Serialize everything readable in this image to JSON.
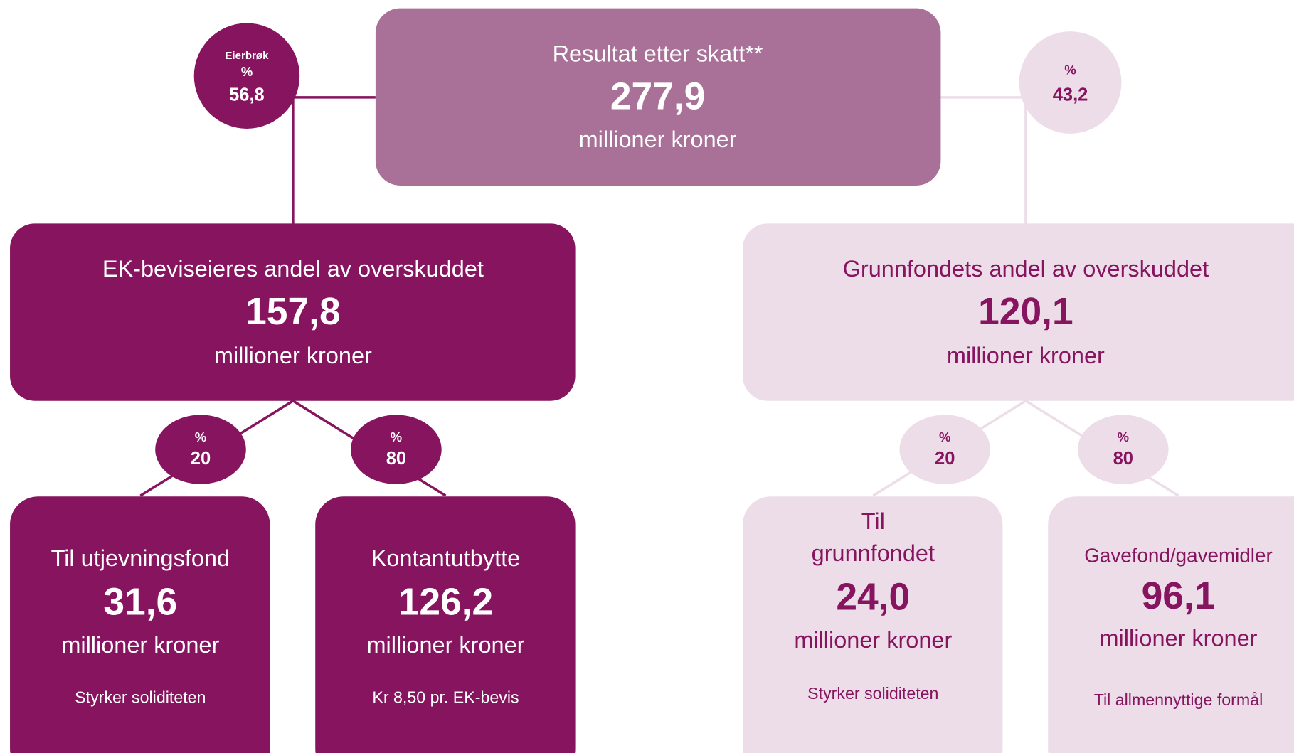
{
  "top": {
    "title": "Resultat etter skatt**",
    "value": "277,9",
    "unit": "millioner kroner"
  },
  "owner_share": {
    "label": "Eierbrøk",
    "symbol": "%",
    "value": "56,8"
  },
  "fund_share": {
    "symbol": "%",
    "value": "43,2"
  },
  "left": {
    "title": "EK-beviseieres andel av overskuddet",
    "value": "157,8",
    "unit": "millioner kroner",
    "split": [
      {
        "symbol": "%",
        "value": "20"
      },
      {
        "symbol": "%",
        "value": "80"
      }
    ],
    "children": [
      {
        "title": "Til utjevningsfond",
        "value": "31,6",
        "unit": "millioner kroner",
        "note": "Styrker soliditeten"
      },
      {
        "title": "Kontantutbytte",
        "value": "126,2",
        "unit": "millioner kroner",
        "note": "Kr 8,50 pr. EK-bevis"
      }
    ]
  },
  "right": {
    "title": "Grunnfondets andel av overskuddet",
    "value": "120,1",
    "unit": "millioner kroner",
    "split": [
      {
        "symbol": "%",
        "value": "20"
      },
      {
        "symbol": "%",
        "value": "80"
      }
    ],
    "children": [
      {
        "title_lines": [
          "Til",
          "grunnfondet"
        ],
        "value": "24,0",
        "unit": "millioner kroner",
        "note": "Styrker soliditeten"
      },
      {
        "title": "Gavefond/gavemidler",
        "value": "96,1",
        "unit": "millioner kroner",
        "note": "Til allmennyttige formål"
      }
    ]
  }
}
